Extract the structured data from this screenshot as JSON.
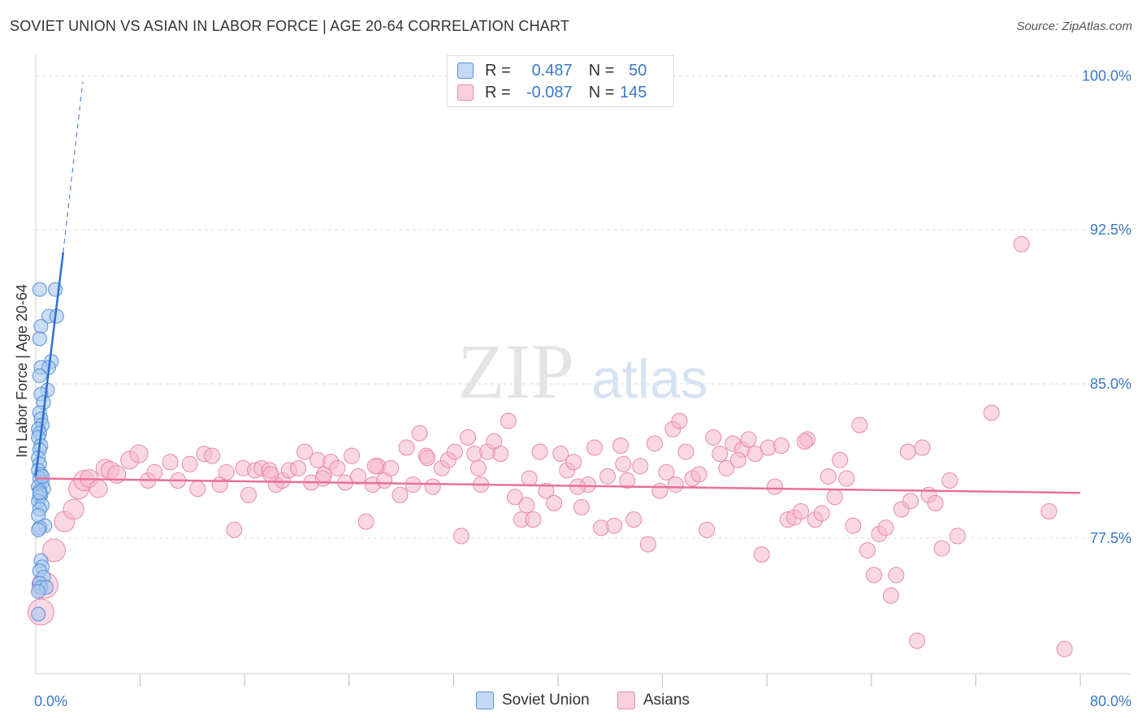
{
  "header": {
    "title": "SOVIET UNION VS ASIAN IN LABOR FORCE | AGE 20-64 CORRELATION CHART",
    "source": "Source: ZipAtlas.com"
  },
  "legend_top": {
    "rows": [
      {
        "r_label": "R =",
        "r_value": "0.487",
        "n_label": "N =",
        "n_value": "50"
      },
      {
        "r_label": "R =",
        "r_value": "-0.087",
        "n_label": "N =",
        "n_value": "145"
      }
    ]
  },
  "legend_bottom": {
    "items": [
      {
        "label": "Soviet Union"
      },
      {
        "label": "Asians"
      }
    ]
  },
  "watermark": {
    "zip": "ZIP",
    "atlas": "atlas"
  },
  "colors": {
    "soviet_fill": "#a9c8f0",
    "soviet_stroke": "#5a8fd6",
    "soviet_line": "#2a6fd0",
    "asian_fill": "#f6b8cc",
    "asian_stroke": "#e98aa8",
    "asian_line": "#e8709a",
    "axis_text": "#3a78c9",
    "grid": "#dddddd"
  },
  "chart_data": {
    "type": "scatter",
    "title": "SOVIET UNION VS ASIAN IN LABOR FORCE | AGE 20-64 CORRELATION CHART",
    "xlabel": "",
    "ylabel": "In Labor Force | Age 20-64",
    "xlim": [
      0,
      80
    ],
    "ylim": [
      70.9,
      101
    ],
    "x_tick_labels": [
      {
        "value": 0,
        "label": "0.0%"
      },
      {
        "value": 80,
        "label": "80.0%"
      }
    ],
    "y_tick_labels": [
      {
        "value": 100,
        "label": "100.0%"
      },
      {
        "value": 92.5,
        "label": "92.5%"
      },
      {
        "value": 85,
        "label": "85.0%"
      },
      {
        "value": 77.5,
        "label": "77.5%"
      }
    ],
    "x_minor_ticks": [
      8,
      16,
      24,
      32,
      40,
      48,
      56,
      64,
      72,
      80
    ],
    "series": [
      {
        "name": "Soviet Union",
        "r": 0.487,
        "n": 50,
        "trend": {
          "x": [
            0.0,
            2.1
          ],
          "y": [
            80.5,
            91.4
          ]
        },
        "trend_dashed": {
          "x": [
            2.1,
            3.6
          ],
          "y": [
            91.4,
            99.7
          ]
        },
        "points": [
          [
            0.3,
            89.6
          ],
          [
            1.5,
            89.6
          ],
          [
            1.0,
            88.3
          ],
          [
            1.6,
            88.3
          ],
          [
            0.4,
            87.8
          ],
          [
            0.3,
            87.2
          ],
          [
            1.2,
            86.1
          ],
          [
            0.4,
            85.8
          ],
          [
            1.0,
            85.8
          ],
          [
            0.3,
            85.4
          ],
          [
            0.9,
            84.7
          ],
          [
            0.4,
            84.5
          ],
          [
            0.6,
            84.1
          ],
          [
            0.3,
            83.6
          ],
          [
            0.4,
            83.3
          ],
          [
            0.5,
            83.0
          ],
          [
            0.2,
            82.8
          ],
          [
            0.3,
            82.6
          ],
          [
            0.2,
            82.4
          ],
          [
            0.4,
            82.0
          ],
          [
            0.3,
            81.8
          ],
          [
            0.2,
            81.4
          ],
          [
            0.3,
            81.1
          ],
          [
            0.2,
            80.8
          ],
          [
            0.4,
            80.6
          ],
          [
            0.3,
            80.4
          ],
          [
            0.5,
            80.2
          ],
          [
            0.2,
            80.0
          ],
          [
            0.6,
            79.9
          ],
          [
            0.3,
            79.8
          ],
          [
            0.4,
            79.6
          ],
          [
            0.3,
            79.5
          ],
          [
            0.2,
            79.3
          ],
          [
            0.5,
            79.1
          ],
          [
            0.3,
            78.9
          ],
          [
            0.2,
            78.6
          ],
          [
            0.7,
            78.1
          ],
          [
            0.3,
            78.0
          ],
          [
            0.2,
            77.9
          ],
          [
            0.4,
            76.4
          ],
          [
            0.5,
            76.1
          ],
          [
            0.3,
            75.9
          ],
          [
            0.6,
            75.6
          ],
          [
            0.3,
            75.3
          ],
          [
            0.4,
            75.1
          ],
          [
            0.8,
            75.1
          ],
          [
            0.2,
            74.9
          ],
          [
            0.2,
            73.8
          ],
          [
            0.3,
            79.7
          ],
          [
            0.5,
            80.5
          ]
        ]
      },
      {
        "name": "Asians",
        "r": -0.087,
        "n": 145,
        "trend": {
          "x": [
            0.0,
            80.0
          ],
          "y": [
            80.4,
            79.7
          ]
        },
        "points": [
          [
            0.4,
            73.9
          ],
          [
            0.7,
            75.2
          ],
          [
            1.4,
            76.9
          ],
          [
            2.2,
            78.3
          ],
          [
            2.9,
            78.9
          ],
          [
            3.3,
            79.9
          ],
          [
            3.7,
            80.3
          ],
          [
            4.1,
            80.4
          ],
          [
            4.8,
            79.9
          ],
          [
            5.3,
            80.9
          ],
          [
            5.7,
            80.8
          ],
          [
            6.2,
            80.6
          ],
          [
            7.2,
            81.3
          ],
          [
            7.9,
            81.6
          ],
          [
            8.6,
            80.3
          ],
          [
            9.1,
            80.7
          ],
          [
            10.3,
            81.2
          ],
          [
            10.9,
            80.3
          ],
          [
            11.8,
            81.1
          ],
          [
            12.4,
            79.9
          ],
          [
            12.9,
            81.6
          ],
          [
            13.5,
            81.5
          ],
          [
            14.1,
            80.1
          ],
          [
            14.6,
            80.7
          ],
          [
            15.2,
            77.9
          ],
          [
            15.9,
            80.9
          ],
          [
            16.3,
            79.6
          ],
          [
            16.8,
            80.8
          ],
          [
            17.3,
            80.9
          ],
          [
            17.9,
            80.8
          ],
          [
            18.4,
            80.1
          ],
          [
            18.9,
            80.3
          ],
          [
            19.4,
            80.8
          ],
          [
            20.1,
            80.9
          ],
          [
            20.6,
            81.7
          ],
          [
            21.1,
            80.2
          ],
          [
            21.6,
            81.3
          ],
          [
            22.1,
            80.6
          ],
          [
            22.6,
            81.2
          ],
          [
            23.1,
            80.9
          ],
          [
            23.7,
            80.2
          ],
          [
            24.2,
            81.5
          ],
          [
            24.7,
            80.5
          ],
          [
            25.3,
            78.3
          ],
          [
            25.8,
            80.1
          ],
          [
            26.2,
            81.0
          ],
          [
            26.7,
            80.3
          ],
          [
            27.2,
            80.9
          ],
          [
            27.9,
            79.6
          ],
          [
            28.4,
            81.9
          ],
          [
            28.9,
            80.1
          ],
          [
            29.4,
            82.6
          ],
          [
            29.9,
            81.5
          ],
          [
            30.4,
            80.0
          ],
          [
            31.1,
            80.9
          ],
          [
            31.6,
            81.3
          ],
          [
            32.1,
            81.7
          ],
          [
            32.6,
            77.6
          ],
          [
            33.1,
            82.4
          ],
          [
            33.6,
            81.6
          ],
          [
            34.1,
            80.1
          ],
          [
            34.6,
            81.7
          ],
          [
            35.1,
            82.2
          ],
          [
            35.6,
            81.6
          ],
          [
            36.2,
            83.2
          ],
          [
            36.7,
            79.5
          ],
          [
            37.2,
            78.4
          ],
          [
            37.6,
            79.1
          ],
          [
            38.1,
            78.4
          ],
          [
            38.6,
            81.7
          ],
          [
            39.1,
            79.8
          ],
          [
            39.7,
            79.2
          ],
          [
            40.2,
            81.6
          ],
          [
            40.7,
            80.8
          ],
          [
            41.2,
            81.2
          ],
          [
            41.8,
            79.0
          ],
          [
            42.3,
            80.1
          ],
          [
            42.8,
            81.9
          ],
          [
            43.3,
            78.0
          ],
          [
            43.8,
            80.5
          ],
          [
            44.3,
            78.1
          ],
          [
            44.8,
            82.0
          ],
          [
            45.3,
            80.3
          ],
          [
            45.8,
            78.4
          ],
          [
            46.3,
            81.0
          ],
          [
            46.9,
            77.2
          ],
          [
            47.4,
            82.1
          ],
          [
            47.8,
            79.8
          ],
          [
            48.3,
            80.7
          ],
          [
            48.8,
            82.8
          ],
          [
            49.3,
            83.2
          ],
          [
            49.8,
            81.7
          ],
          [
            50.3,
            80.4
          ],
          [
            50.8,
            80.6
          ],
          [
            51.4,
            77.9
          ],
          [
            51.9,
            82.4
          ],
          [
            52.4,
            81.6
          ],
          [
            52.9,
            80.9
          ],
          [
            53.4,
            82.1
          ],
          [
            54.1,
            81.8
          ],
          [
            54.6,
            82.3
          ],
          [
            55.1,
            81.6
          ],
          [
            55.6,
            76.7
          ],
          [
            56.1,
            81.9
          ],
          [
            56.6,
            80.0
          ],
          [
            57.1,
            82.0
          ],
          [
            57.6,
            78.4
          ],
          [
            58.1,
            78.5
          ],
          [
            58.6,
            78.8
          ],
          [
            59.1,
            82.3
          ],
          [
            59.7,
            78.4
          ],
          [
            60.2,
            78.7
          ],
          [
            60.7,
            80.5
          ],
          [
            61.2,
            79.5
          ],
          [
            61.6,
            81.3
          ],
          [
            62.1,
            80.4
          ],
          [
            62.6,
            78.1
          ],
          [
            63.1,
            83.0
          ],
          [
            63.7,
            76.9
          ],
          [
            64.2,
            75.7
          ],
          [
            64.6,
            77.7
          ],
          [
            65.1,
            78.0
          ],
          [
            65.5,
            74.7
          ],
          [
            65.9,
            75.7
          ],
          [
            66.3,
            78.9
          ],
          [
            67.0,
            79.3
          ],
          [
            67.5,
            72.5
          ],
          [
            67.9,
            81.9
          ],
          [
            68.4,
            79.6
          ],
          [
            68.9,
            79.2
          ],
          [
            69.4,
            77.0
          ],
          [
            70.0,
            80.3
          ],
          [
            70.6,
            77.6
          ],
          [
            73.2,
            83.6
          ],
          [
            75.5,
            91.8
          ],
          [
            77.6,
            78.8
          ],
          [
            78.8,
            72.1
          ],
          [
            66.8,
            81.7
          ],
          [
            58.9,
            82.2
          ],
          [
            53.8,
            81.3
          ],
          [
            49.0,
            80.1
          ],
          [
            45.0,
            81.1
          ],
          [
            41.5,
            80.0
          ],
          [
            37.8,
            80.4
          ],
          [
            33.9,
            80.9
          ],
          [
            30.0,
            81.4
          ],
          [
            26.0,
            81.0
          ],
          [
            22.0,
            80.4
          ],
          [
            18.0,
            80.6
          ]
        ]
      }
    ]
  }
}
